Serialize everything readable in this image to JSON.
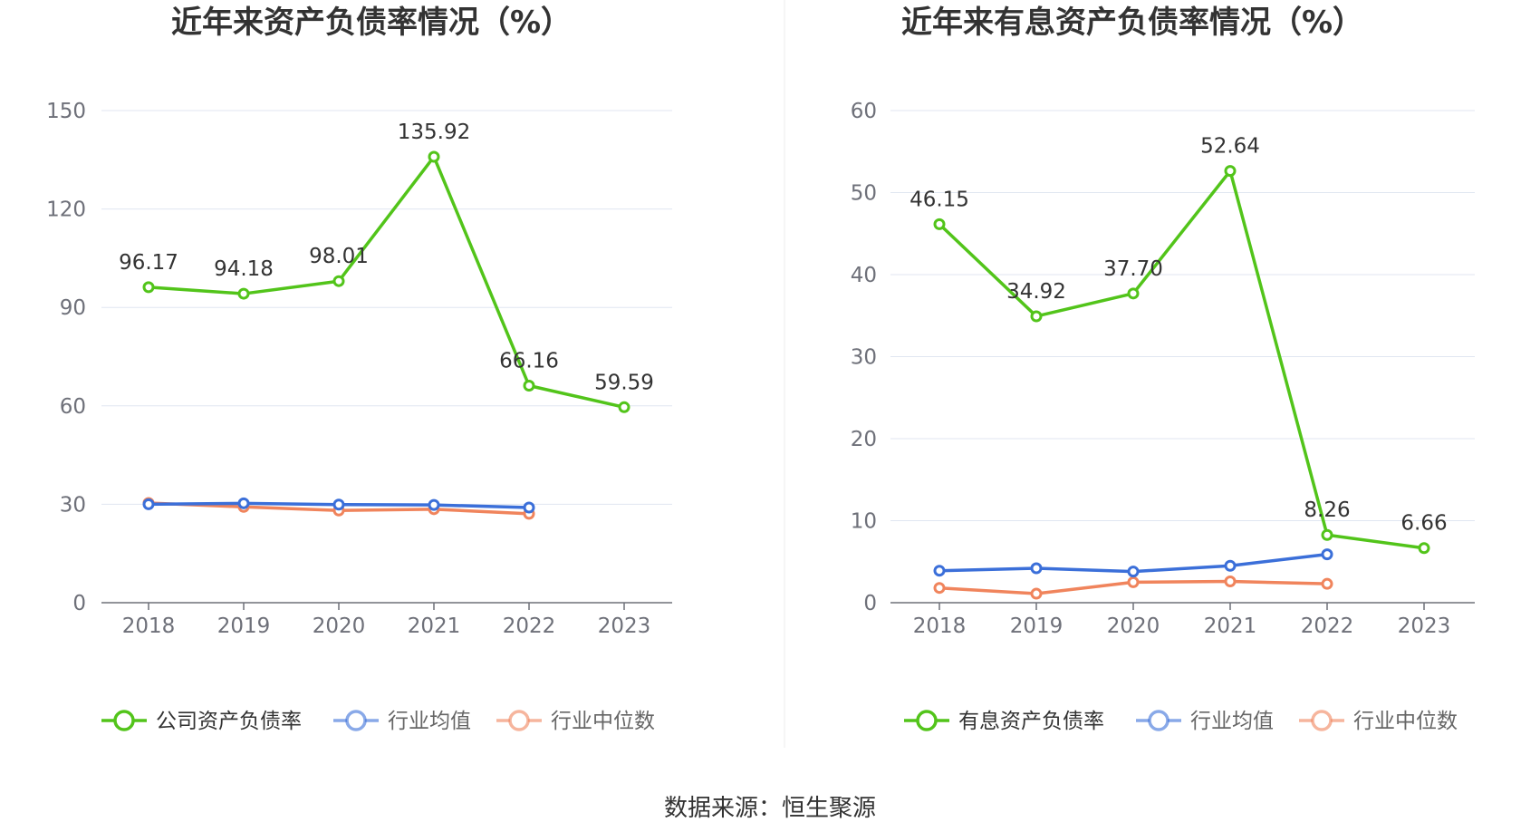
{
  "source": "数据来源：恒生聚源",
  "chart_data": [
    {
      "type": "line",
      "title": "近年来资产负债率情况（%）",
      "categories": [
        "2018",
        "2019",
        "2020",
        "2021",
        "2022",
        "2023"
      ],
      "ylim": [
        0,
        150
      ],
      "yticks": [
        0,
        30,
        60,
        90,
        120,
        150
      ],
      "grid": true,
      "legend_position": "bottom",
      "series": [
        {
          "name": "公司资产负债率",
          "color": "#52c41a",
          "values": [
            96.17,
            94.18,
            98.01,
            135.92,
            66.16,
            59.59
          ],
          "labels": [
            "96.17",
            "94.18",
            "98.01",
            "135.92",
            "66.16",
            "59.59"
          ]
        },
        {
          "name": "行业均值",
          "color": "#3b6fd9",
          "values": [
            30.0,
            30.3,
            29.9,
            29.8,
            29.0,
            null
          ]
        },
        {
          "name": "行业中位数",
          "color": "#f0845c",
          "values": [
            30.4,
            29.2,
            28.1,
            28.5,
            27.1,
            null
          ]
        }
      ]
    },
    {
      "type": "line",
      "title": "近年来有息资产负债率情况（%）",
      "categories": [
        "2018",
        "2019",
        "2020",
        "2021",
        "2022",
        "2023"
      ],
      "ylim": [
        0,
        60
      ],
      "yticks": [
        0,
        10,
        20,
        30,
        40,
        50,
        60
      ],
      "grid": true,
      "legend_position": "bottom",
      "series": [
        {
          "name": "有息资产负债率",
          "color": "#52c41a",
          "values": [
            46.15,
            34.92,
            37.7,
            52.64,
            8.26,
            6.66
          ],
          "labels": [
            "46.15",
            "34.92",
            "37.70",
            "52.64",
            "8.26",
            "6.66"
          ]
        },
        {
          "name": "行业均值",
          "color": "#3b6fd9",
          "values": [
            3.9,
            4.2,
            3.8,
            4.5,
            5.9,
            null
          ]
        },
        {
          "name": "行业中位数",
          "color": "#f0845c",
          "values": [
            1.8,
            1.1,
            2.5,
            2.6,
            2.3,
            null
          ]
        }
      ]
    }
  ]
}
